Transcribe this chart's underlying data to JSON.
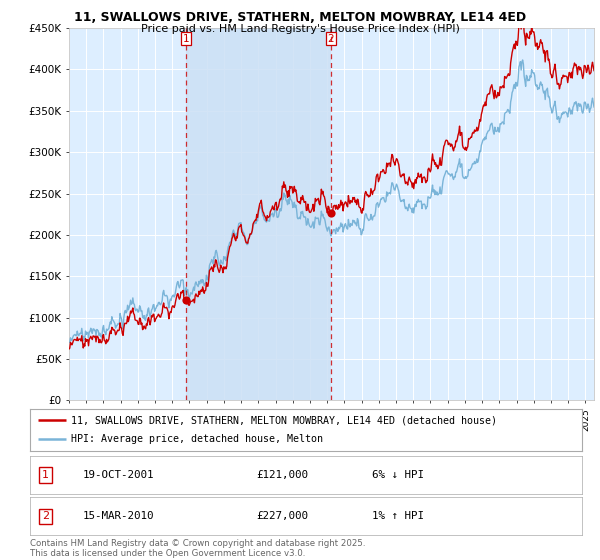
{
  "title": "11, SWALLOWS DRIVE, STATHERN, MELTON MOWBRAY, LE14 4ED",
  "subtitle": "Price paid vs. HM Land Registry's House Price Index (HPI)",
  "ylim": [
    0,
    450000
  ],
  "yticks": [
    0,
    50000,
    100000,
    150000,
    200000,
    250000,
    300000,
    350000,
    400000,
    450000
  ],
  "ytick_labels": [
    "£0",
    "£50K",
    "£100K",
    "£150K",
    "£200K",
    "£250K",
    "£300K",
    "£350K",
    "£400K",
    "£450K"
  ],
  "background_color": "#ffffff",
  "plot_bg_color": "#ddeeff",
  "grid_color": "#ffffff",
  "sale1_date": 2001.8,
  "sale1_price": 121000,
  "sale2_date": 2010.2,
  "sale2_price": 227000,
  "hpi_color": "#7ab4d8",
  "price_color": "#cc0000",
  "vline_color": "#cc0000",
  "span_color": "#ddeeff",
  "legend_label_price": "11, SWALLOWS DRIVE, STATHERN, MELTON MOWBRAY, LE14 4ED (detached house)",
  "legend_label_hpi": "HPI: Average price, detached house, Melton",
  "footer_text": "Contains HM Land Registry data © Crown copyright and database right 2025.\nThis data is licensed under the Open Government Licence v3.0.",
  "xmin": 1995,
  "xmax": 2025.5
}
